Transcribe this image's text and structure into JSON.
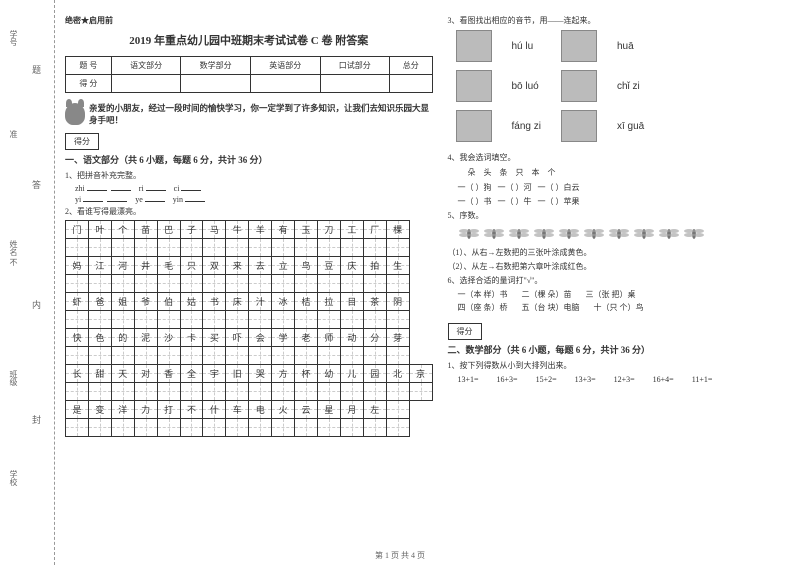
{
  "binding_labels": {
    "b1": "题",
    "b2": "答",
    "b3": "内",
    "b4": "封"
  },
  "vlabels": {
    "v1": "学号",
    "v2": "准",
    "v3": "姓名 不",
    "v4": "班级",
    "v5": "学校"
  },
  "secret": "绝密★启用前",
  "title_main": "2019 年重点幼儿园中班期末考试试卷 C 卷 附答案",
  "score_table": {
    "headers": [
      "题 号",
      "语文部分",
      "数学部分",
      "英语部分",
      "口试部分",
      "总分"
    ],
    "row2_label": "得 分"
  },
  "intro": "亲爱的小朋友，经过一段时间的愉快学习，你一定学到了许多知识，让我们去知识乐园大显身手吧！",
  "score_label": "得分",
  "section_yuwen": "一、语文部分（共 6 小题，每题 6 分，共计 36 分）",
  "q1": "1、把拼音补充完整。",
  "pinyin1": {
    "a": "zhi",
    "b": "ri",
    "c": "ci"
  },
  "pinyin2": {
    "a": "yi",
    "b": "ye",
    "c": "yin"
  },
  "q2": "2、看谁写得最漂亮。",
  "char_rows": [
    [
      "门",
      "叶",
      "个",
      "苗",
      "巴",
      "子",
      "马",
      "牛",
      "羊",
      "有",
      "玉",
      "刀",
      "工",
      "厂",
      "棵"
    ],
    [
      "",
      "",
      "",
      "",
      "",
      "",
      "",
      "",
      "",
      "",
      "",
      "",
      "",
      "",
      ""
    ],
    [
      "妈",
      "江",
      "河",
      "井",
      "毛",
      "只",
      "双",
      "来",
      "去",
      "立",
      "鸟",
      "豆",
      "庆",
      "拍",
      "生"
    ],
    [
      "",
      "",
      "",
      "",
      "",
      "",
      "",
      "",
      "",
      "",
      "",
      "",
      "",
      "",
      ""
    ],
    [
      "虾",
      "爸",
      "姐",
      "爷",
      "伯",
      "姑",
      "书",
      "床",
      "汁",
      "冰",
      "桔",
      "拉",
      "目",
      "茶",
      "阴"
    ],
    [
      "",
      "",
      "",
      "",
      "",
      "",
      "",
      "",
      "",
      "",
      "",
      "",
      "",
      "",
      ""
    ],
    [
      "快",
      "色",
      "的",
      "泥",
      "沙",
      "卡",
      "买",
      "吓",
      "会",
      "学",
      "老",
      "师",
      "动",
      "分",
      "芽"
    ],
    [
      "",
      "",
      "",
      "",
      "",
      "",
      "",
      "",
      "",
      "",
      "",
      "",
      "",
      "",
      ""
    ],
    [
      "长",
      "甜",
      "天",
      "对",
      "香",
      "全",
      "宇",
      "旧",
      "哭",
      "方",
      "杯",
      "幼",
      "儿",
      "园",
      "北",
      "京"
    ],
    [
      "",
      "",
      "",
      "",
      "",
      "",
      "",
      "",
      "",
      "",
      "",
      "",
      "",
      "",
      "",
      ""
    ],
    [
      "是",
      "变",
      "洋",
      "力",
      "打",
      "不",
      "什",
      "车",
      "电",
      "火",
      "云",
      "星",
      "月",
      "左",
      ""
    ],
    [
      "",
      "",
      "",
      "",
      "",
      "",
      "",
      "",
      "",
      "",
      "",
      "",
      "",
      "",
      ""
    ]
  ],
  "q3": "3、看图找出相应的音节，用——连起来。",
  "match": {
    "left_words": [
      "hú lu",
      "bō luó",
      "fáng zi"
    ],
    "right_words": [
      "huā",
      "chǐ zi",
      "xī guā"
    ]
  },
  "q4": "4、我会选词填空。",
  "q4_options": "朵  头  条  只  本  个",
  "q4_line1": {
    "a": "一（    ）狗",
    "b": "一（    ）河",
    "c": "一（    ）白云"
  },
  "q4_line2": {
    "a": "一（    ）书",
    "b": "一（    ）牛",
    "c": "一（    ）苹果"
  },
  "q5": "5、序数。",
  "q5_1": "（1）、从右→左数把的三张叶涂成黄色。",
  "q5_2": "（2）、从左→右数把第六章叶涂成红色。",
  "q6": "6、选择合适的量词打\"√\"。",
  "q6_lines": {
    "l1a": "一（本  样）书",
    "l1b": "二（棵  朵）苗",
    "l1c": "三（张  把）桌",
    "l2a": "四（座  条）桥",
    "l2b": "五（台  块）电脑",
    "l2c": "十（只  个）鸟"
  },
  "section_math": "二、数学部分（共 6 小题，每题 6 分，共计 36 分）",
  "mq1": "1、按下列得数从小到大排列出来。",
  "math_exprs": [
    "13+1=",
    "16+3=",
    "15+2=",
    "13+3=",
    "12+3=",
    "16+4=",
    "11+1="
  ],
  "footer": "第 1 页 共 4 页"
}
